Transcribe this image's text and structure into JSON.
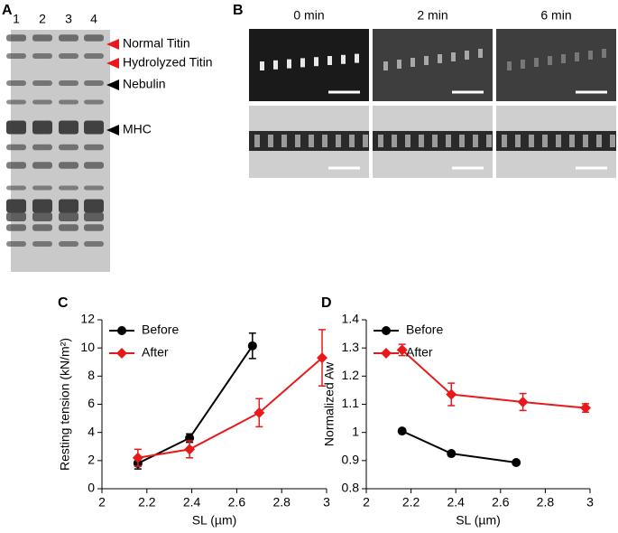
{
  "panel_labels": [
    "A",
    "B",
    "C",
    "D"
  ],
  "gel": {
    "lanes": [
      "1",
      "2",
      "3",
      "4"
    ],
    "bands": [
      "Normal Titin",
      "Hydrolyzed Titin",
      "Nebulin",
      "MHC"
    ]
  },
  "micrographs": {
    "times": [
      "0 min",
      "2 min",
      "6 min"
    ]
  },
  "chart_data": [
    {
      "type": "line",
      "ylabel": "Resting tension (kN/m²)",
      "xlabel": "SL (µm)",
      "xlim": [
        2,
        3
      ],
      "xticks": [
        2,
        2.2,
        2.4,
        2.6,
        2.8,
        3
      ],
      "ylim": [
        0,
        12
      ],
      "yticks": [
        0,
        2,
        4,
        6,
        8,
        10,
        12
      ],
      "legend": "upper left",
      "series": [
        {
          "name": "Before",
          "color": "#000000",
          "marker": "circle",
          "x": [
            2.16,
            2.39,
            2.67
          ],
          "values": [
            1.8,
            3.6,
            10.15
          ],
          "errors": [
            0.4,
            0.3,
            0.9
          ]
        },
        {
          "name": "After",
          "color": "#e8191b",
          "marker": "diamond",
          "x": [
            2.16,
            2.39,
            2.7,
            2.98
          ],
          "values": [
            2.2,
            2.8,
            5.4,
            9.3
          ],
          "errors": [
            0.6,
            0.6,
            1.0,
            2.0
          ]
        }
      ]
    },
    {
      "type": "line",
      "ylabel": "Normalized Aw",
      "xlabel": "SL (µm)",
      "xlim": [
        2,
        3
      ],
      "xticks": [
        2,
        2.2,
        2.4,
        2.6,
        2.8,
        3
      ],
      "ylim": [
        0.8,
        1.4
      ],
      "yticks": [
        0.8,
        0.9,
        1,
        1.1,
        1.2,
        1.3,
        1.4
      ],
      "legend": "upper left",
      "series": [
        {
          "name": "Before",
          "color": "#000000",
          "marker": "circle",
          "x": [
            2.16,
            2.38,
            2.67
          ],
          "values": [
            1.005,
            0.925,
            0.893
          ],
          "errors": [
            0.005,
            0.007,
            0.005
          ]
        },
        {
          "name": "After",
          "color": "#e8191b",
          "marker": "diamond",
          "x": [
            2.16,
            2.38,
            2.7,
            2.98
          ],
          "values": [
            1.293,
            1.135,
            1.108,
            1.087
          ],
          "errors": [
            0.02,
            0.04,
            0.03,
            0.015
          ]
        }
      ]
    }
  ]
}
